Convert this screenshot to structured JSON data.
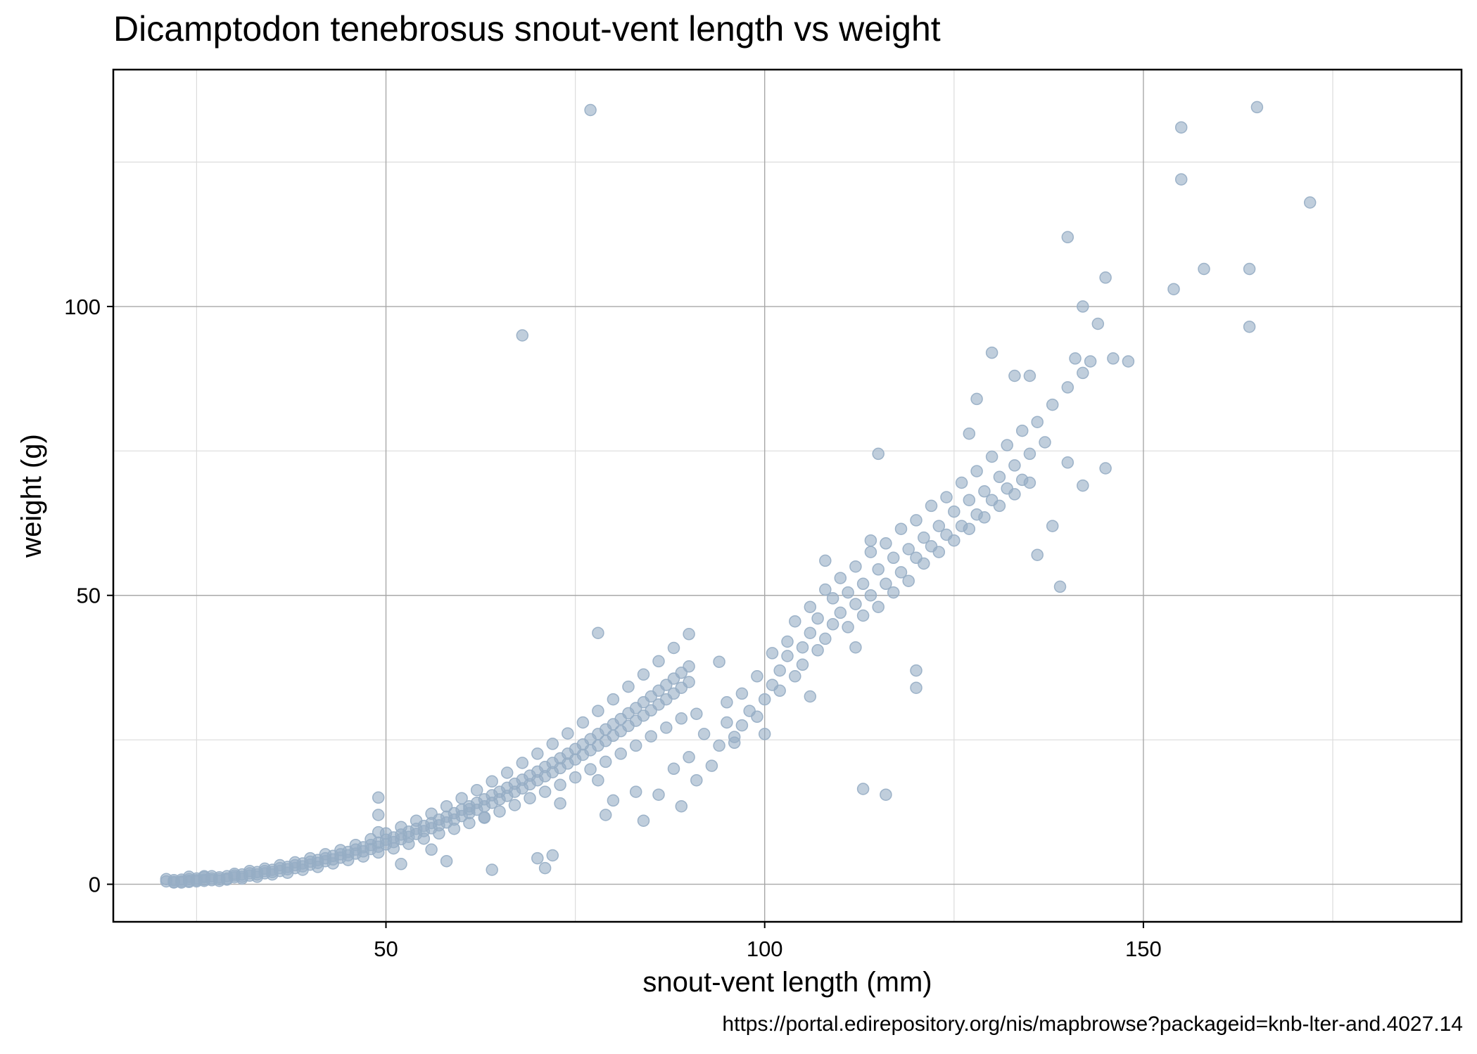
{
  "chart_data": {
    "type": "scatter",
    "title": "Dicamptodon tenebrosus snout-vent length vs weight",
    "xlabel": "snout-vent length (mm)",
    "ylabel": "weight (g)",
    "caption": "https://portal.edirepository.org/nis/mapbrowse?packageid=knb-lter-and.4027.14",
    "xlim": [
      14,
      192
    ],
    "ylim": [
      -6.5,
      141
    ],
    "xticks": [
      50,
      100,
      150
    ],
    "yticks": [
      0,
      50,
      100
    ],
    "minor_xgrid": [
      25,
      75,
      125,
      175
    ],
    "minor_ygrid": [
      25,
      75,
      125
    ],
    "grid": true,
    "point_color": "#96adc4",
    "point_opacity": 0.6,
    "points": [
      [
        21,
        0.5
      ],
      [
        22,
        0.4
      ],
      [
        22,
        0.7
      ],
      [
        23,
        0.5
      ],
      [
        23,
        0.8
      ],
      [
        24,
        0.6
      ],
      [
        24,
        0.9
      ],
      [
        25,
        0.7
      ],
      [
        25,
        1.0
      ],
      [
        26,
        0.8
      ],
      [
        26,
        1.2
      ],
      [
        27,
        1.0
      ],
      [
        27,
        0.7
      ],
      [
        28,
        1.2
      ],
      [
        28,
        0.9
      ],
      [
        29,
        1.4
      ],
      [
        29,
        1.0
      ],
      [
        30,
        1.5
      ],
      [
        30,
        1.2
      ],
      [
        31,
        1.7
      ],
      [
        31,
        1.3
      ],
      [
        32,
        1.9
      ],
      [
        32,
        1.5
      ],
      [
        33,
        2.1
      ],
      [
        33,
        1.7
      ],
      [
        34,
        2.3
      ],
      [
        34,
        1.9
      ],
      [
        35,
        2.5
      ],
      [
        35,
        2.1
      ],
      [
        36,
        2.8
      ],
      [
        36,
        2.3
      ],
      [
        37,
        3.0
      ],
      [
        37,
        2.6
      ],
      [
        38,
        3.3
      ],
      [
        38,
        2.8
      ],
      [
        39,
        3.6
      ],
      [
        39,
        3.1
      ],
      [
        40,
        3.9
      ],
      [
        40,
        3.4
      ],
      [
        41,
        4.2
      ],
      [
        41,
        3.7
      ],
      [
        42,
        4.5
      ],
      [
        42,
        4.0
      ],
      [
        43,
        4.9
      ],
      [
        43,
        4.3
      ],
      [
        44,
        5.2
      ],
      [
        44,
        4.6
      ],
      [
        45,
        5.6
      ],
      [
        45,
        5.0
      ],
      [
        46,
        6.0
      ],
      [
        46,
        5.3
      ],
      [
        47,
        6.4
      ],
      [
        47,
        5.7
      ],
      [
        48,
        6.8
      ],
      [
        48,
        6.1
      ],
      [
        49,
        7.2
      ],
      [
        49,
        6.5
      ],
      [
        50,
        7.7
      ],
      [
        50,
        6.9
      ],
      [
        51,
        8.1
      ],
      [
        51,
        7.3
      ],
      [
        52,
        8.6
      ],
      [
        52,
        7.8
      ],
      [
        53,
        9.1
      ],
      [
        53,
        8.2
      ],
      [
        54,
        9.6
      ],
      [
        54,
        8.7
      ],
      [
        55,
        10.1
      ],
      [
        55,
        9.2
      ],
      [
        56,
        10.6
      ],
      [
        56,
        9.7
      ],
      [
        57,
        11.2
      ],
      [
        57,
        10.2
      ],
      [
        58,
        11.7
      ],
      [
        58,
        10.7
      ],
      [
        59,
        12.3
      ],
      [
        59,
        11.2
      ],
      [
        60,
        12.9
      ],
      [
        60,
        11.8
      ],
      [
        61,
        13.5
      ],
      [
        61,
        12.3
      ],
      [
        62,
        14.1
      ],
      [
        62,
        12.9
      ],
      [
        63,
        14.7
      ],
      [
        63,
        13.5
      ],
      [
        64,
        15.4
      ],
      [
        64,
        14.1
      ],
      [
        65,
        16.0
      ],
      [
        65,
        14.7
      ],
      [
        66,
        16.7
      ],
      [
        66,
        15.3
      ],
      [
        67,
        17.4
      ],
      [
        67,
        16.0
      ],
      [
        68,
        18.1
      ],
      [
        68,
        16.6
      ],
      [
        69,
        18.8
      ],
      [
        69,
        17.3
      ],
      [
        70,
        19.5
      ],
      [
        70,
        18.0
      ],
      [
        71,
        20.3
      ],
      [
        71,
        18.7
      ],
      [
        72,
        21.0
      ],
      [
        72,
        19.4
      ],
      [
        73,
        21.8
      ],
      [
        73,
        20.1
      ],
      [
        74,
        22.6
      ],
      [
        74,
        20.9
      ],
      [
        75,
        23.4
      ],
      [
        75,
        21.6
      ],
      [
        76,
        24.2
      ],
      [
        76,
        22.4
      ],
      [
        77,
        25.1
      ],
      [
        77,
        23.2
      ],
      [
        78,
        26.0
      ],
      [
        78,
        24.0
      ],
      [
        79,
        26.8
      ],
      [
        79,
        24.8
      ],
      [
        80,
        27.7
      ],
      [
        80,
        25.7
      ],
      [
        81,
        28.6
      ],
      [
        81,
        26.5
      ],
      [
        82,
        29.6
      ],
      [
        82,
        27.4
      ],
      [
        83,
        30.5
      ],
      [
        83,
        28.3
      ],
      [
        84,
        31.5
      ],
      [
        84,
        29.2
      ],
      [
        85,
        32.5
      ],
      [
        85,
        30.1
      ],
      [
        86,
        33.5
      ],
      [
        86,
        31.1
      ],
      [
        87,
        34.5
      ],
      [
        87,
        32.0
      ],
      [
        88,
        35.6
      ],
      [
        88,
        33.0
      ],
      [
        89,
        36.6
      ],
      [
        89,
        34.0
      ],
      [
        90,
        37.7
      ],
      [
        90,
        35.0
      ],
      [
        21,
        0.9
      ],
      [
        22,
        0.3
      ],
      [
        23,
        0.3
      ],
      [
        24,
        0.4
      ],
      [
        24,
        1.3
      ],
      [
        25,
        0.5
      ],
      [
        26,
        0.6
      ],
      [
        26,
        1.4
      ],
      [
        27,
        1.4
      ],
      [
        28,
        0.6
      ],
      [
        29,
        0.8
      ],
      [
        30,
        1.8
      ],
      [
        31,
        1.0
      ],
      [
        32,
        2.3
      ],
      [
        33,
        1.3
      ],
      [
        34,
        2.7
      ],
      [
        35,
        1.7
      ],
      [
        36,
        3.3
      ],
      [
        37,
        2.0
      ],
      [
        38,
        3.8
      ],
      [
        39,
        2.5
      ],
      [
        40,
        4.5
      ],
      [
        41,
        3.0
      ],
      [
        42,
        5.2
      ],
      [
        43,
        3.6
      ],
      [
        44,
        5.9
      ],
      [
        45,
        4.2
      ],
      [
        46,
        6.8
      ],
      [
        47,
        4.8
      ],
      [
        48,
        7.8
      ],
      [
        49,
        5.5
      ],
      [
        50,
        8.8
      ],
      [
        51,
        6.2
      ],
      [
        52,
        9.9
      ],
      [
        53,
        7.0
      ],
      [
        54,
        11.0
      ],
      [
        55,
        7.9
      ],
      [
        56,
        12.2
      ],
      [
        57,
        8.8
      ],
      [
        58,
        13.5
      ],
      [
        59,
        9.6
      ],
      [
        60,
        14.9
      ],
      [
        61,
        10.6
      ],
      [
        62,
        16.3
      ],
      [
        63,
        11.6
      ],
      [
        64,
        17.8
      ],
      [
        65,
        12.6
      ],
      [
        66,
        19.3
      ],
      [
        67,
        13.7
      ],
      [
        68,
        21.0
      ],
      [
        69,
        14.9
      ],
      [
        70,
        22.6
      ],
      [
        71,
        16.0
      ],
      [
        72,
        24.3
      ],
      [
        73,
        17.2
      ],
      [
        74,
        26.1
      ],
      [
        75,
        18.5
      ],
      [
        76,
        28.0
      ],
      [
        77,
        19.9
      ],
      [
        78,
        30.0
      ],
      [
        79,
        21.2
      ],
      [
        80,
        32.0
      ],
      [
        81,
        22.6
      ],
      [
        82,
        34.2
      ],
      [
        83,
        24.0
      ],
      [
        84,
        36.3
      ],
      [
        85,
        25.6
      ],
      [
        86,
        38.6
      ],
      [
        87,
        27.1
      ],
      [
        88,
        40.9
      ],
      [
        89,
        28.7
      ],
      [
        90,
        43.3
      ],
      [
        49,
        15.0
      ],
      [
        49,
        12.0
      ],
      [
        49,
        9.0
      ],
      [
        52,
        3.5
      ],
      [
        56,
        6.0
      ],
      [
        58,
        4.0
      ],
      [
        61,
        13.0
      ],
      [
        63,
        11.5
      ],
      [
        64,
        2.5
      ],
      [
        70,
        4.5
      ],
      [
        71,
        2.8
      ],
      [
        72,
        5.0
      ],
      [
        73,
        14.0
      ],
      [
        78,
        18.0
      ],
      [
        79,
        12.0
      ],
      [
        80,
        14.5
      ],
      [
        83,
        16.0
      ],
      [
        84,
        11.0
      ],
      [
        86,
        15.5
      ],
      [
        88,
        20.0
      ],
      [
        89,
        13.5
      ],
      [
        90,
        22.0
      ],
      [
        91,
        18.0
      ],
      [
        92,
        26.0
      ],
      [
        93,
        20.5
      ],
      [
        94,
        24.0
      ],
      [
        95,
        28.0
      ],
      [
        95,
        31.5
      ],
      [
        96,
        25.5
      ],
      [
        97,
        33.0
      ],
      [
        97,
        27.5
      ],
      [
        98,
        30.0
      ],
      [
        99,
        36.0
      ],
      [
        99,
        29.0
      ],
      [
        100,
        32.0
      ],
      [
        101,
        34.5
      ],
      [
        101,
        40.0
      ],
      [
        102,
        37.0
      ],
      [
        102,
        33.5
      ],
      [
        103,
        42.0
      ],
      [
        103,
        39.5
      ],
      [
        104,
        36.0
      ],
      [
        104,
        45.5
      ],
      [
        105,
        41.0
      ],
      [
        105,
        38.0
      ],
      [
        106,
        48.0
      ],
      [
        106,
        43.5
      ],
      [
        107,
        40.5
      ],
      [
        107,
        46.0
      ],
      [
        108,
        42.5
      ],
      [
        108,
        51.0
      ],
      [
        109,
        45.0
      ],
      [
        109,
        49.5
      ],
      [
        110,
        47.0
      ],
      [
        110,
        53.0
      ],
      [
        111,
        50.5
      ],
      [
        111,
        44.5
      ],
      [
        112,
        48.5
      ],
      [
        112,
        55.0
      ],
      [
        113,
        52.0
      ],
      [
        113,
        46.5
      ],
      [
        114,
        50.0
      ],
      [
        114,
        57.5
      ],
      [
        115,
        54.5
      ],
      [
        115,
        48.0
      ],
      [
        116,
        52.0
      ],
      [
        116,
        59.0
      ],
      [
        117,
        56.5
      ],
      [
        117,
        50.5
      ],
      [
        118,
        54.0
      ],
      [
        118,
        61.5
      ],
      [
        119,
        58.0
      ],
      [
        119,
        52.5
      ],
      [
        120,
        56.5
      ],
      [
        120,
        63.0
      ],
      [
        120,
        37.0
      ],
      [
        121,
        60.0
      ],
      [
        121,
        55.5
      ],
      [
        122,
        58.5
      ],
      [
        122,
        65.5
      ],
      [
        123,
        62.0
      ],
      [
        123,
        57.5
      ],
      [
        124,
        60.5
      ],
      [
        124,
        67.0
      ],
      [
        125,
        64.5
      ],
      [
        125,
        59.5
      ],
      [
        126,
        62.0
      ],
      [
        126,
        69.5
      ],
      [
        127,
        66.5
      ],
      [
        127,
        61.5
      ],
      [
        128,
        64.0
      ],
      [
        128,
        71.5
      ],
      [
        129,
        68.0
      ],
      [
        129,
        63.5
      ],
      [
        130,
        66.5
      ],
      [
        130,
        74.0
      ],
      [
        131,
        70.5
      ],
      [
        131,
        65.5
      ],
      [
        132,
        68.5
      ],
      [
        132,
        76.0
      ],
      [
        133,
        72.5
      ],
      [
        133,
        67.5
      ],
      [
        134,
        70.0
      ],
      [
        134,
        78.5
      ],
      [
        135,
        74.5
      ],
      [
        135,
        69.5
      ],
      [
        136,
        57.0
      ],
      [
        136,
        80.0
      ],
      [
        137,
        76.5
      ],
      [
        138,
        62.0
      ],
      [
        138,
        83.0
      ],
      [
        139,
        51.5
      ],
      [
        140,
        86.0
      ],
      [
        140,
        73.0
      ],
      [
        141,
        91.0
      ],
      [
        142,
        88.5
      ],
      [
        142,
        69.0
      ],
      [
        143,
        90.5
      ],
      [
        144,
        97.0
      ],
      [
        145,
        105.0
      ],
      [
        145,
        72.0
      ],
      [
        146,
        91.0
      ],
      [
        148,
        90.5
      ],
      [
        142,
        100.0
      ],
      [
        140,
        112.0
      ],
      [
        128,
        84.0
      ],
      [
        130,
        92.0
      ],
      [
        127,
        78.0
      ],
      [
        133,
        88.0
      ],
      [
        135,
        88.0
      ],
      [
        68,
        95.0
      ],
      [
        77,
        134.0
      ],
      [
        78,
        43.5
      ],
      [
        115,
        74.5
      ],
      [
        113,
        16.5
      ],
      [
        116,
        15.5
      ],
      [
        120,
        34.0
      ],
      [
        108,
        56.0
      ],
      [
        114,
        59.5
      ],
      [
        112,
        41.0
      ],
      [
        106,
        32.5
      ],
      [
        100,
        26.0
      ],
      [
        96,
        24.5
      ],
      [
        94,
        38.5
      ],
      [
        91,
        29.5
      ],
      [
        154,
        103.0
      ],
      [
        155,
        122.0
      ],
      [
        155,
        131.0
      ],
      [
        158,
        106.5
      ],
      [
        164,
        106.5
      ],
      [
        164,
        96.5
      ],
      [
        165,
        134.5
      ],
      [
        172,
        118.0
      ]
    ]
  }
}
